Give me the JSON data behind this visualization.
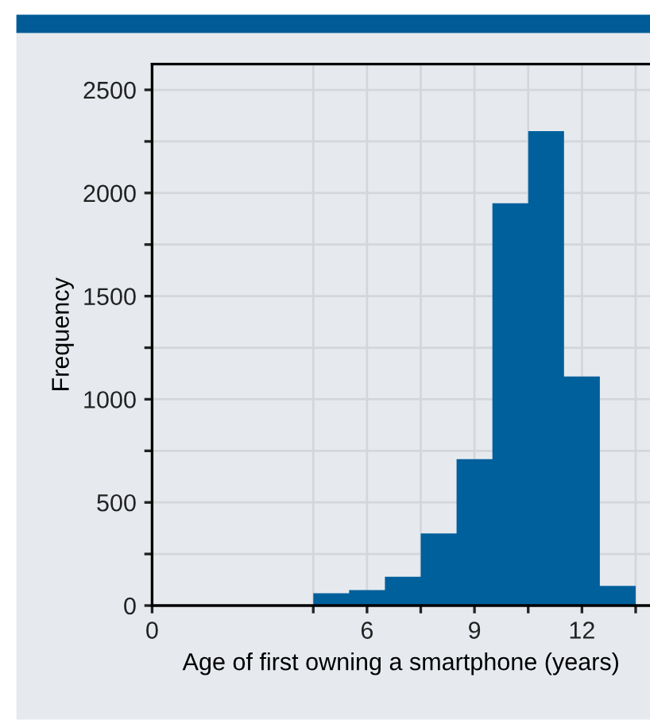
{
  "chart_data": {
    "type": "histogram",
    "xlabel": "Age of first owning a smartphone (years)",
    "ylabel": "Frequency",
    "bins": [
      4.5,
      5.5,
      6.5,
      7.5,
      8.5,
      9.5,
      10.5,
      11.5,
      12.5,
      13.5
    ],
    "values": [
      60,
      75,
      140,
      350,
      710,
      1950,
      2300,
      1110,
      95
    ],
    "color": "#00609c",
    "xlim": [
      0,
      13.9
    ],
    "ylim": [
      0,
      2625
    ],
    "xticks": [
      0,
      {
        "value": 4.5,
        "label": null
      },
      6,
      {
        "value": 7.5,
        "label": null
      },
      9,
      {
        "value": 10.5,
        "label": null
      },
      12,
      {
        "value": 13.5,
        "label": null
      }
    ],
    "yticks": [
      0,
      {
        "value": 250,
        "label": null
      },
      500,
      {
        "value": 750,
        "label": null
      },
      1000,
      {
        "value": 1250,
        "label": null
      },
      1500,
      {
        "value": 1750,
        "label": null
      },
      2000,
      {
        "value": 2250,
        "label": null
      },
      2500
    ],
    "grid": true
  }
}
